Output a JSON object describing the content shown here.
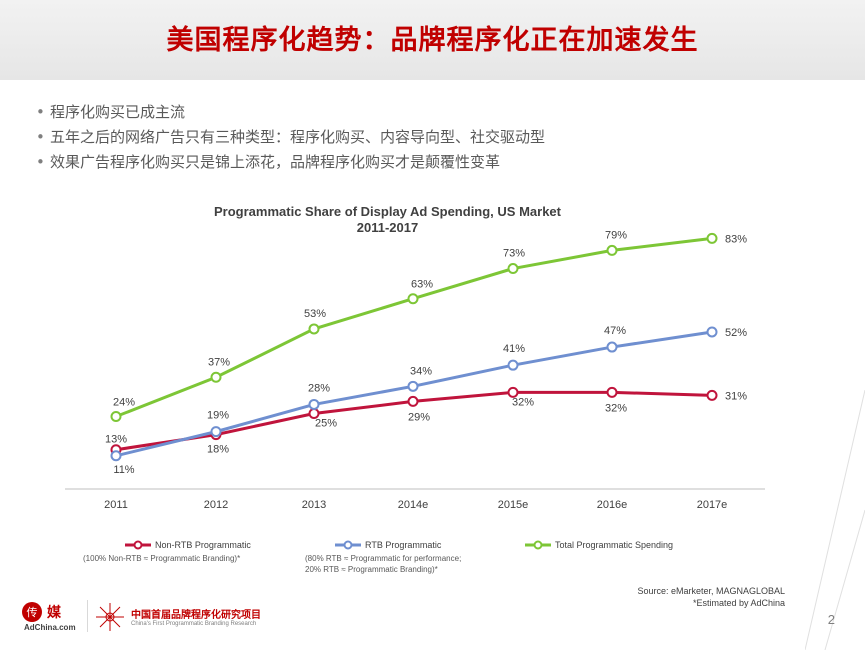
{
  "slide": {
    "title": "美国程序化趋势：品牌程序化正在加速发生",
    "bullets": [
      "程序化购买已成主流",
      "五年之后的网络广告只有三种类型：程序化购买、内容导向型、社交驱动型",
      "效果广告程序化购买只是锦上添花，品牌程序化购买才是颠覆性变革"
    ],
    "page_number": "2"
  },
  "chart_data": {
    "type": "line",
    "title": "Programmatic Share of Display Ad Spending, US Market",
    "subtitle": "2011-2017",
    "categories": [
      "2011",
      "2012",
      "2013",
      "2014e",
      "2015e",
      "2016e",
      "2017e"
    ],
    "ylim": [
      0,
      100
    ],
    "grid": false,
    "legend_position": "bottom",
    "series": [
      {
        "name": "Non-RTB Programmatic",
        "note": "(100% Non-RTB ≈ Programmatic Branding)*",
        "color": "#c0143c",
        "values": [
          13,
          18,
          25,
          29,
          32,
          32,
          31
        ],
        "labels": [
          "13%",
          "18%",
          "25%",
          "29%",
          "32%",
          "32%",
          "31%"
        ]
      },
      {
        "name": "RTB Programmatic",
        "note": "(80% RTB ≈ Programmatic for performance; 20% RTB ≈ Programmatic Branding)*",
        "color": "#6f8fd0",
        "values": [
          11,
          19,
          28,
          34,
          41,
          47,
          52
        ],
        "labels": [
          "11%",
          "19%",
          "28%",
          "34%",
          "41%",
          "47%",
          "52%"
        ]
      },
      {
        "name": "Total Programmatic Spending",
        "note": "",
        "color": "#7dc636",
        "values": [
          24,
          37,
          53,
          63,
          73,
          79,
          83
        ],
        "labels": [
          "24%",
          "37%",
          "53%",
          "63%",
          "73%",
          "79%",
          "83%"
        ]
      }
    ]
  },
  "footer": {
    "source": "Source: eMarketer, MAGNAGLOBAL",
    "estimated": "*Estimated by AdChina",
    "logo1_text": "AdChina.com",
    "logo2_cn": "中国首届品牌程序化研究项目",
    "logo2_en": "China's First Programmatic Branding Research"
  }
}
